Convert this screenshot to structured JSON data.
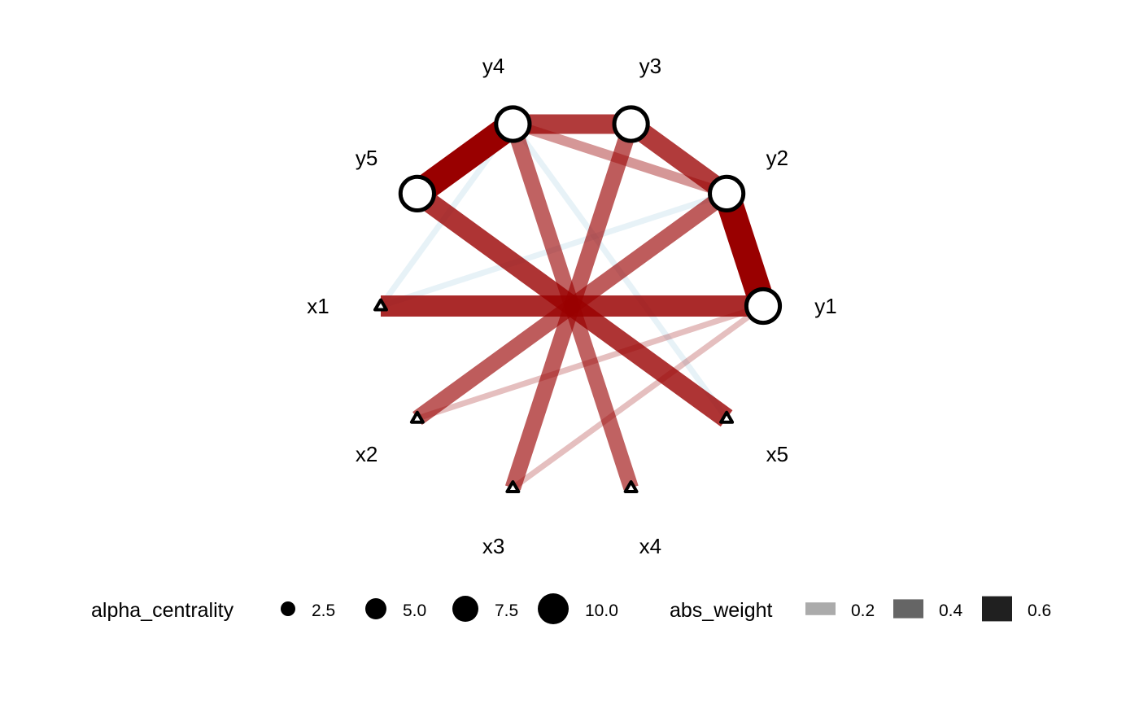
{
  "chart_data": {
    "type": "network",
    "title": "",
    "colors": {
      "positive": "#990000",
      "negative": "#9ECAE1",
      "node_fill": "#FFFFFF",
      "node_stroke": "#000000"
    },
    "nodes": [
      {
        "id": "y1",
        "label": "y1",
        "shape": "circle",
        "alpha_centrality": 6.0
      },
      {
        "id": "y2",
        "label": "y2",
        "shape": "circle",
        "alpha_centrality": 6.0
      },
      {
        "id": "y3",
        "label": "y3",
        "shape": "circle",
        "alpha_centrality": 6.0
      },
      {
        "id": "y4",
        "label": "y4",
        "shape": "circle",
        "alpha_centrality": 6.0
      },
      {
        "id": "y5",
        "label": "y5",
        "shape": "circle",
        "alpha_centrality": 6.0
      },
      {
        "id": "x1",
        "label": "x1",
        "shape": "triangle",
        "alpha_centrality": 1.0
      },
      {
        "id": "x2",
        "label": "x2",
        "shape": "triangle",
        "alpha_centrality": 1.0
      },
      {
        "id": "x3",
        "label": "x3",
        "shape": "triangle",
        "alpha_centrality": 1.0
      },
      {
        "id": "x4",
        "label": "x4",
        "shape": "triangle",
        "alpha_centrality": 1.0
      },
      {
        "id": "x5",
        "label": "x5",
        "shape": "triangle",
        "alpha_centrality": 1.0
      }
    ],
    "edges": [
      {
        "from": "x1",
        "to": "y1",
        "weight": 0.55
      },
      {
        "from": "x5",
        "to": "y5",
        "weight": 0.52
      },
      {
        "from": "x2",
        "to": "y2",
        "weight": 0.4
      },
      {
        "from": "x3",
        "to": "y3",
        "weight": 0.4
      },
      {
        "from": "x4",
        "to": "y4",
        "weight": 0.38
      },
      {
        "from": "y1",
        "to": "y2",
        "weight": 0.7
      },
      {
        "from": "y2",
        "to": "y3",
        "weight": 0.5
      },
      {
        "from": "y3",
        "to": "y4",
        "weight": 0.5
      },
      {
        "from": "y4",
        "to": "y5",
        "weight": 0.7
      },
      {
        "from": "y4",
        "to": "y2",
        "weight": 0.22
      },
      {
        "from": "x1",
        "to": "y2",
        "weight": -0.1
      },
      {
        "from": "x1",
        "to": "y4",
        "weight": -0.1
      },
      {
        "from": "x5",
        "to": "y4",
        "weight": -0.1
      },
      {
        "from": "x2",
        "to": "y1",
        "weight": 0.1
      },
      {
        "from": "x3",
        "to": "y1",
        "weight": 0.1
      }
    ],
    "legend": {
      "position": "bottom",
      "size": {
        "title": "alpha_centrality",
        "breaks": [
          2.5,
          5.0,
          7.5,
          10.0
        ],
        "labels": [
          "2.5",
          "5.0",
          "7.5",
          "10.0"
        ]
      },
      "width": {
        "title": "abs_weight",
        "breaks": [
          0.2,
          0.4,
          0.6
        ],
        "labels": [
          "0.2",
          "0.4",
          "0.6"
        ]
      }
    }
  }
}
